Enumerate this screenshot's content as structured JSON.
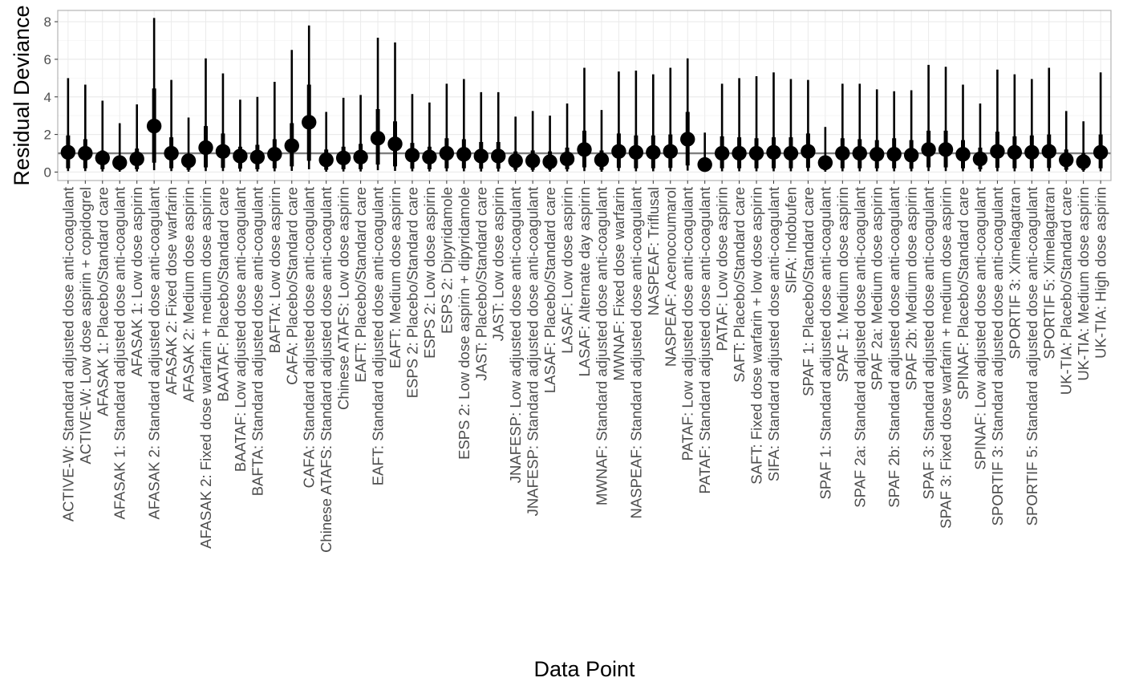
{
  "chart_data": {
    "type": "scatter",
    "subtype": "pointrange",
    "xlabel": "Data Point",
    "ylabel": "Residual Deviance",
    "ylim": [
      -0.45,
      8.6
    ],
    "yticks": [
      0,
      2,
      4,
      6,
      8
    ],
    "reference_line": 1,
    "grid": true,
    "legend": "none",
    "colors": {
      "points": "#000000",
      "reference_line": "#7f7f7f",
      "panel_border": "#b3b3b3",
      "grid_major": "#ebebeb",
      "grid_minor": "#f5f5f5"
    },
    "points": [
      {
        "label": "ACTIVE-W: Standard adjusted dose anti-coagulant",
        "y": 1.05,
        "lo": 0.05,
        "q25": 0.2,
        "q75": 1.95,
        "hi": 5.0
      },
      {
        "label": "ACTIVE-W: Low dose aspirin + copidogrel",
        "y": 1.0,
        "lo": 0.05,
        "q25": 0.2,
        "q75": 1.75,
        "hi": 4.65
      },
      {
        "label": "AFASAK 1: Placebo/Standard care",
        "y": 0.75,
        "lo": 0.03,
        "q25": 0.15,
        "q75": 1.15,
        "hi": 3.8
      },
      {
        "label": "AFASAK 1: Standard adjusted dose anti-coagulant",
        "y": 0.5,
        "lo": 0.02,
        "q25": 0.1,
        "q75": 0.85,
        "hi": 2.6
      },
      {
        "label": "AFASAK 1: Low dose aspirin",
        "y": 0.7,
        "lo": 0.03,
        "q25": 0.15,
        "q75": 1.25,
        "hi": 3.6
      },
      {
        "label": "AFASAK 2: Standard adjusted dose anti-coagulant",
        "y": 2.45,
        "lo": 0.1,
        "q25": 0.5,
        "q75": 4.45,
        "hi": 8.2
      },
      {
        "label": "AFASAK 2: Fixed dose warfarin",
        "y": 1.0,
        "lo": 0.05,
        "q25": 0.2,
        "q75": 1.85,
        "hi": 4.9
      },
      {
        "label": "AFASAK 2: Medium dose aspirin",
        "y": 0.6,
        "lo": 0.02,
        "q25": 0.12,
        "q75": 0.95,
        "hi": 2.9
      },
      {
        "label": "AFASAK 2: Fixed dose warfarin + medium dose aspirin",
        "y": 1.3,
        "lo": 0.05,
        "q25": 0.25,
        "q75": 2.45,
        "hi": 6.05
      },
      {
        "label": "BAATAF: Placebo/Standard care",
        "y": 1.1,
        "lo": 0.05,
        "q25": 0.22,
        "q75": 2.05,
        "hi": 5.25
      },
      {
        "label": "BAATAF: Low adjusted dose anti-coagulant",
        "y": 0.85,
        "lo": 0.03,
        "q25": 0.18,
        "q75": 1.35,
        "hi": 3.85
      },
      {
        "label": "BAFTA: Standard adjusted dose anti-coagulant",
        "y": 0.8,
        "lo": 0.03,
        "q25": 0.15,
        "q75": 1.45,
        "hi": 4.0
      },
      {
        "label": "BAFTA: Low dose aspirin",
        "y": 0.95,
        "lo": 0.04,
        "q25": 0.2,
        "q75": 1.75,
        "hi": 4.8
      },
      {
        "label": "CAFA: Placebo/Standard care",
        "y": 1.4,
        "lo": 0.06,
        "q25": 0.3,
        "q75": 2.6,
        "hi": 6.5
      },
      {
        "label": "CAFA: Standard adjusted dose anti-coagulant",
        "y": 2.65,
        "lo": 0.15,
        "q25": 0.6,
        "q75": 4.65,
        "hi": 7.8
      },
      {
        "label": "Chinese ATAFS: Standard adjusted dose anti-coagulant",
        "y": 0.65,
        "lo": 0.02,
        "q25": 0.12,
        "q75": 1.2,
        "hi": 3.2
      },
      {
        "label": "Chinese ATAFS: Low dose aspirin",
        "y": 0.75,
        "lo": 0.03,
        "q25": 0.15,
        "q75": 1.35,
        "hi": 3.95
      },
      {
        "label": "EAFT: Placebo/Standard care",
        "y": 0.8,
        "lo": 0.03,
        "q25": 0.15,
        "q75": 1.5,
        "hi": 4.1
      },
      {
        "label": "EAFT: Standard adjusted dose anti-coagulant",
        "y": 1.8,
        "lo": 0.1,
        "q25": 0.4,
        "q75": 3.35,
        "hi": 7.15
      },
      {
        "label": "EAFT: Medium dose aspirin",
        "y": 1.5,
        "lo": 0.06,
        "q25": 0.3,
        "q75": 2.7,
        "hi": 6.9
      },
      {
        "label": "ESPS 2: Placebo/Standard care",
        "y": 0.9,
        "lo": 0.04,
        "q25": 0.18,
        "q75": 1.55,
        "hi": 4.15
      },
      {
        "label": "ESPS 2: Low dose aspirin",
        "y": 0.8,
        "lo": 0.03,
        "q25": 0.15,
        "q75": 1.35,
        "hi": 3.7
      },
      {
        "label": "ESPS 2: Dipyridamole",
        "y": 1.0,
        "lo": 0.04,
        "q25": 0.2,
        "q75": 1.8,
        "hi": 4.7
      },
      {
        "label": "ESPS 2: Low dose aspirin + dipyridamole",
        "y": 0.95,
        "lo": 0.04,
        "q25": 0.2,
        "q75": 1.75,
        "hi": 4.95
      },
      {
        "label": "JAST: Placebo/Standard care",
        "y": 0.85,
        "lo": 0.03,
        "q25": 0.18,
        "q75": 1.6,
        "hi": 4.25
      },
      {
        "label": "JAST: Low dose aspirin",
        "y": 0.85,
        "lo": 0.03,
        "q25": 0.18,
        "q75": 1.6,
        "hi": 4.25
      },
      {
        "label": "JNAFESP: Low adjusted dose anti-coagulant",
        "y": 0.6,
        "lo": 0.02,
        "q25": 0.12,
        "q75": 1.1,
        "hi": 2.95
      },
      {
        "label": "JNAFESP: Standard adjusted dose anti-coagulant",
        "y": 0.6,
        "lo": 0.02,
        "q25": 0.12,
        "q75": 1.15,
        "hi": 3.25
      },
      {
        "label": "LASAF: Placebo/Standard care",
        "y": 0.55,
        "lo": 0.02,
        "q25": 0.12,
        "q75": 1.1,
        "hi": 3.0
      },
      {
        "label": "LASAF: Low dose aspirin",
        "y": 0.7,
        "lo": 0.03,
        "q25": 0.15,
        "q75": 1.3,
        "hi": 3.65
      },
      {
        "label": "LASAF: Alternate day aspirin",
        "y": 1.2,
        "lo": 0.05,
        "q25": 0.25,
        "q75": 2.2,
        "hi": 5.55
      },
      {
        "label": "MWNAF: Standard adjusted dose anti-coagulant",
        "y": 0.65,
        "lo": 0.02,
        "q25": 0.12,
        "q75": 1.15,
        "hi": 3.3
      },
      {
        "label": "MWNAF: Fixed dose warfarin",
        "y": 1.1,
        "lo": 0.05,
        "q25": 0.22,
        "q75": 2.05,
        "hi": 5.35
      },
      {
        "label": "NASPEAF: Standard adjusted dose anti-coagulant",
        "y": 1.05,
        "lo": 0.04,
        "q25": 0.2,
        "q75": 1.95,
        "hi": 5.4
      },
      {
        "label": "NASPEAF: Triflusal",
        "y": 1.05,
        "lo": 0.04,
        "q25": 0.2,
        "q75": 1.95,
        "hi": 5.2
      },
      {
        "label": "NASPEAF: Acenocoumarol",
        "y": 1.1,
        "lo": 0.04,
        "q25": 0.22,
        "q75": 2.0,
        "hi": 5.55
      },
      {
        "label": "PATAF: Low adjusted dose anti-coagulant",
        "y": 1.75,
        "lo": 0.08,
        "q25": 0.35,
        "q75": 3.2,
        "hi": 6.05
      },
      {
        "label": "PATAF: Standard adjusted dose anti-coagulant",
        "y": 0.4,
        "lo": 0.01,
        "q25": 0.08,
        "q75": 0.75,
        "hi": 2.1
      },
      {
        "label": "PATAF: Low dose aspirin",
        "y": 1.0,
        "lo": 0.04,
        "q25": 0.2,
        "q75": 1.9,
        "hi": 4.7
      },
      {
        "label": "SAFT: Placebo/Standard care",
        "y": 1.0,
        "lo": 0.04,
        "q25": 0.2,
        "q75": 1.85,
        "hi": 5.0
      },
      {
        "label": "SAFT: Fixed dose warfarin + low dose aspirin",
        "y": 1.0,
        "lo": 0.04,
        "q25": 0.2,
        "q75": 1.8,
        "hi": 5.1
      },
      {
        "label": "SIFA: Standard adjusted dose anti-coagulant",
        "y": 1.05,
        "lo": 0.04,
        "q25": 0.2,
        "q75": 1.85,
        "hi": 5.3
      },
      {
        "label": "SIFA: Indobufen",
        "y": 1.0,
        "lo": 0.04,
        "q25": 0.2,
        "q75": 1.85,
        "hi": 4.95
      },
      {
        "label": "SPAF 1: Placebo/Standard care",
        "y": 1.1,
        "lo": 0.04,
        "q25": 0.22,
        "q75": 2.05,
        "hi": 4.9
      },
      {
        "label": "SPAF 1: Standard adjusted dose anti-coagulant",
        "y": 0.5,
        "lo": 0.02,
        "q25": 0.1,
        "q75": 0.85,
        "hi": 2.4
      },
      {
        "label": "SPAF 1: Medium dose aspirin",
        "y": 1.0,
        "lo": 0.04,
        "q25": 0.2,
        "q75": 1.8,
        "hi": 4.7
      },
      {
        "label": "SPAF 2a: Standard adjusted dose anti-coagulant",
        "y": 1.0,
        "lo": 0.04,
        "q25": 0.2,
        "q75": 1.75,
        "hi": 4.7
      },
      {
        "label": "SPAF 2a: Medium dose aspirin",
        "y": 0.95,
        "lo": 0.04,
        "q25": 0.2,
        "q75": 1.7,
        "hi": 4.4
      },
      {
        "label": "SPAF 2b: Standard adjusted dose anti-coagulant",
        "y": 0.95,
        "lo": 0.04,
        "q25": 0.2,
        "q75": 1.8,
        "hi": 4.3
      },
      {
        "label": "SPAF 2b: Medium dose aspirin",
        "y": 0.9,
        "lo": 0.04,
        "q25": 0.18,
        "q75": 1.7,
        "hi": 4.35
      },
      {
        "label": "SPAF 3: Standard adjusted dose anti-coagulant",
        "y": 1.2,
        "lo": 0.05,
        "q25": 0.25,
        "q75": 2.2,
        "hi": 5.7
      },
      {
        "label": "SPAF 3: Fixed dose warfarin + medium dose aspirin",
        "y": 1.2,
        "lo": 0.05,
        "q25": 0.25,
        "q75": 2.2,
        "hi": 5.6
      },
      {
        "label": "SPINAF: Placebo/Standard care",
        "y": 0.95,
        "lo": 0.04,
        "q25": 0.2,
        "q75": 1.7,
        "hi": 4.65
      },
      {
        "label": "SPINAF: Low adjusted dose anti-coagulant",
        "y": 0.7,
        "lo": 0.03,
        "q25": 0.15,
        "q75": 1.3,
        "hi": 3.65
      },
      {
        "label": "SPORTIF 3: Standard adjusted dose anti-coagulant",
        "y": 1.1,
        "lo": 0.04,
        "q25": 0.22,
        "q75": 2.15,
        "hi": 5.45
      },
      {
        "label": "SPORTIF 3: Ximelagatran",
        "y": 1.05,
        "lo": 0.04,
        "q25": 0.2,
        "q75": 1.9,
        "hi": 5.2
      },
      {
        "label": "SPORTIF 5: Standard adjusted dose anti-coagulant",
        "y": 1.05,
        "lo": 0.04,
        "q25": 0.2,
        "q75": 1.95,
        "hi": 4.95
      },
      {
        "label": "SPORTIF 5: Ximelagatran",
        "y": 1.1,
        "lo": 0.04,
        "q25": 0.22,
        "q75": 2.0,
        "hi": 5.55
      },
      {
        "label": "UK-TIA: Placebo/Standard care",
        "y": 0.65,
        "lo": 0.02,
        "q25": 0.12,
        "q75": 1.2,
        "hi": 3.25
      },
      {
        "label": "UK-TIA: Medium dose aspirin",
        "y": 0.55,
        "lo": 0.02,
        "q25": 0.1,
        "q75": 1.0,
        "hi": 2.7
      },
      {
        "label": "UK-TIA: High dose aspirin",
        "y": 1.05,
        "lo": 0.04,
        "q25": 0.2,
        "q75": 2.0,
        "hi": 5.3
      }
    ]
  }
}
